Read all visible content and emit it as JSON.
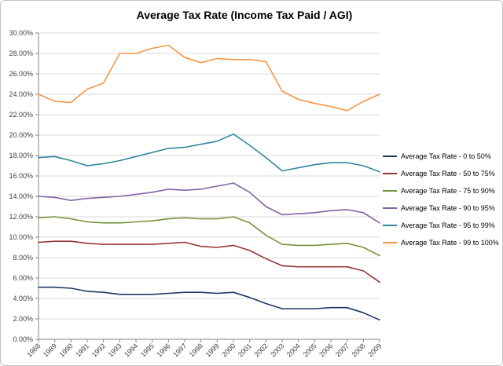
{
  "title": "Average Tax Rate (Income Tax Paid / AGI)",
  "chart_data": {
    "type": "line",
    "title": "Average Tax Rate (Income Tax Paid / AGI)",
    "xlabel": "",
    "ylabel": "",
    "ylim": [
      0,
      30
    ],
    "ytick_step": 2,
    "ytick_labels": [
      "0.00%",
      "2.00%",
      "4.00%",
      "6.00%",
      "8.00%",
      "10.00%",
      "12.00%",
      "14.00%",
      "16.00%",
      "18.00%",
      "20.00%",
      "22.00%",
      "24.00%",
      "26.00%",
      "28.00%",
      "30.00%"
    ],
    "grid": true,
    "legend_position": "right",
    "x": [
      "1988",
      "1989",
      "1990",
      "1991",
      "1992",
      "1993",
      "1994",
      "1995",
      "1996",
      "1997",
      "1998",
      "1999",
      "2000",
      "2001",
      "2002",
      "2003",
      "2004",
      "2005",
      "2006",
      "2007",
      "2008",
      "2009"
    ],
    "series": [
      {
        "name": "Average Tax Rate - 0 to 50%",
        "color": "#1F3864",
        "values": [
          5.1,
          5.1,
          5.0,
          4.7,
          4.6,
          4.4,
          4.4,
          4.4,
          4.5,
          4.6,
          4.6,
          4.5,
          4.6,
          4.1,
          3.5,
          3.0,
          3.0,
          3.0,
          3.1,
          3.1,
          2.6,
          1.9
        ]
      },
      {
        "name": "Average Tax Rate - 50 to 75%",
        "color": "#943634",
        "values": [
          9.5,
          9.6,
          9.6,
          9.4,
          9.3,
          9.3,
          9.3,
          9.3,
          9.4,
          9.5,
          9.1,
          9.0,
          9.2,
          8.7,
          7.9,
          7.2,
          7.1,
          7.1,
          7.1,
          7.1,
          6.7,
          5.6
        ]
      },
      {
        "name": "Average Tax Rate - 75 to 90%",
        "color": "#77933C",
        "values": [
          11.9,
          12.0,
          11.8,
          11.5,
          11.4,
          11.4,
          11.5,
          11.6,
          11.8,
          11.9,
          11.8,
          11.8,
          12.0,
          11.4,
          10.2,
          9.3,
          9.2,
          9.2,
          9.3,
          9.4,
          9.0,
          8.2
        ]
      },
      {
        "name": "Average Tax Rate - 90 to 95%",
        "color": "#8064A2",
        "values": [
          14.0,
          13.9,
          13.6,
          13.8,
          13.9,
          14.0,
          14.2,
          14.4,
          14.7,
          14.6,
          14.7,
          15.0,
          15.3,
          14.4,
          13.0,
          12.2,
          12.3,
          12.4,
          12.6,
          12.7,
          12.4,
          11.4
        ]
      },
      {
        "name": "Average Tax Rate - 95 to 99%",
        "color": "#31859C",
        "values": [
          17.8,
          17.9,
          17.5,
          17.0,
          17.2,
          17.5,
          17.9,
          18.3,
          18.7,
          18.8,
          19.1,
          19.4,
          20.1,
          19.0,
          17.8,
          16.5,
          16.8,
          17.1,
          17.3,
          17.3,
          17.0,
          16.4
        ]
      },
      {
        "name": "Average Tax Rate - 99 to 100%",
        "color": "#F79646",
        "values": [
          24.0,
          23.3,
          23.2,
          24.5,
          25.1,
          28.0,
          28.0,
          28.5,
          28.8,
          27.6,
          27.1,
          27.5,
          27.4,
          27.4,
          27.2,
          24.3,
          23.5,
          23.1,
          22.8,
          22.4,
          23.3,
          24.0
        ]
      }
    ],
    "colors": {
      "gridline": "#D9D9D9",
      "axis": "#868686",
      "tick_label": "#3F3F3F",
      "background": "#FFFFFF"
    }
  }
}
